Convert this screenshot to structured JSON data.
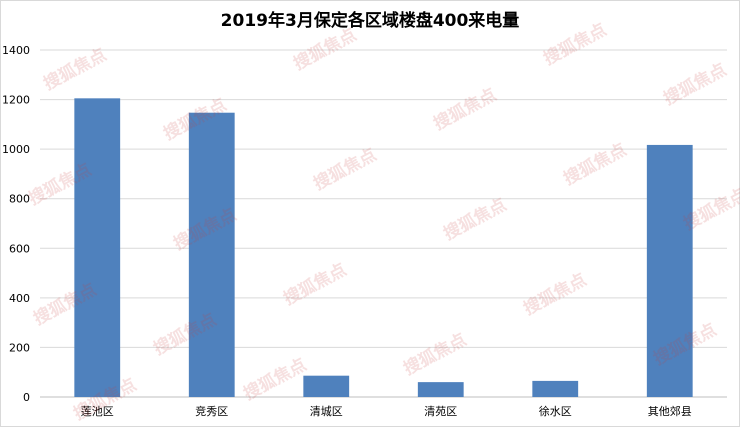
{
  "chart_data": {
    "type": "bar",
    "title": "2019年3月保定各区域楼盘400来电量",
    "categories": [
      "莲池区",
      "竞秀区",
      "清城区",
      "清苑区",
      "徐水区",
      "其他郊县"
    ],
    "values": [
      1205,
      1147,
      86,
      60,
      65,
      1017
    ],
    "ylim": [
      0,
      1400
    ],
    "yticks": [
      0,
      200,
      400,
      600,
      800,
      1000,
      1200,
      1400
    ],
    "grid": true,
    "bar_color": "#4f81bd"
  },
  "watermark": {
    "text": "搜狐焦点"
  }
}
